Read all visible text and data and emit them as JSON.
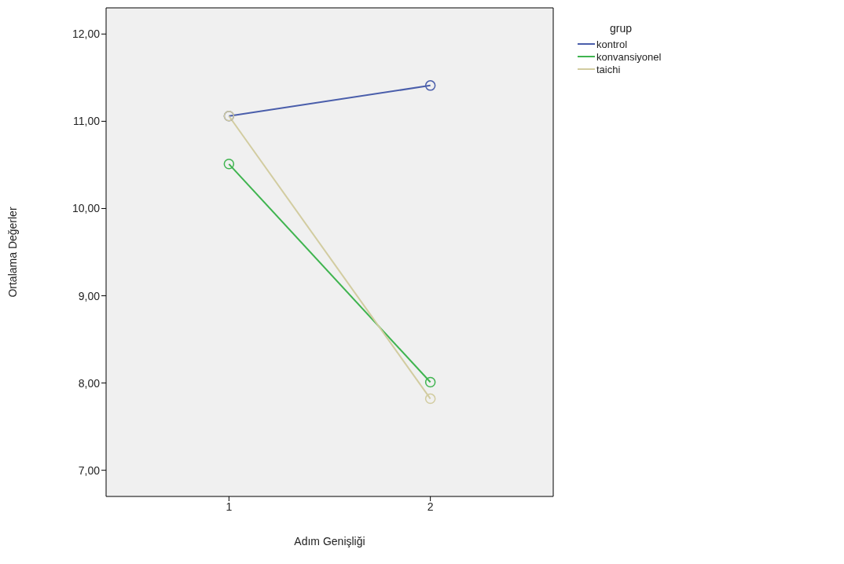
{
  "chart_data": {
    "type": "line",
    "xlabel": "Adım Genişliği",
    "ylabel": "Ortalama Değerler",
    "legend_title": "grup",
    "categories": [
      "1",
      "2"
    ],
    "series": [
      {
        "name": "kontrol",
        "color": "#4a5eab",
        "values": [
          11.06,
          11.41
        ]
      },
      {
        "name": "konvansiyonel",
        "color": "#3fb44f",
        "values": [
          10.51,
          8.01
        ]
      },
      {
        "name": "taichi",
        "color": "#d2cca0",
        "values": [
          11.06,
          7.82
        ]
      }
    ],
    "ylim": [
      6.7,
      12.3
    ],
    "yticks": [
      {
        "value": 7,
        "label": "7,00"
      },
      {
        "value": 8,
        "label": "8,00"
      },
      {
        "value": 9,
        "label": "9,00"
      },
      {
        "value": 10,
        "label": "10,00"
      },
      {
        "value": 11,
        "label": "11,00"
      },
      {
        "value": 12,
        "label": "12,00"
      }
    ],
    "grid": false,
    "legend": "top right",
    "marker": "circle",
    "line_style": "solid"
  }
}
